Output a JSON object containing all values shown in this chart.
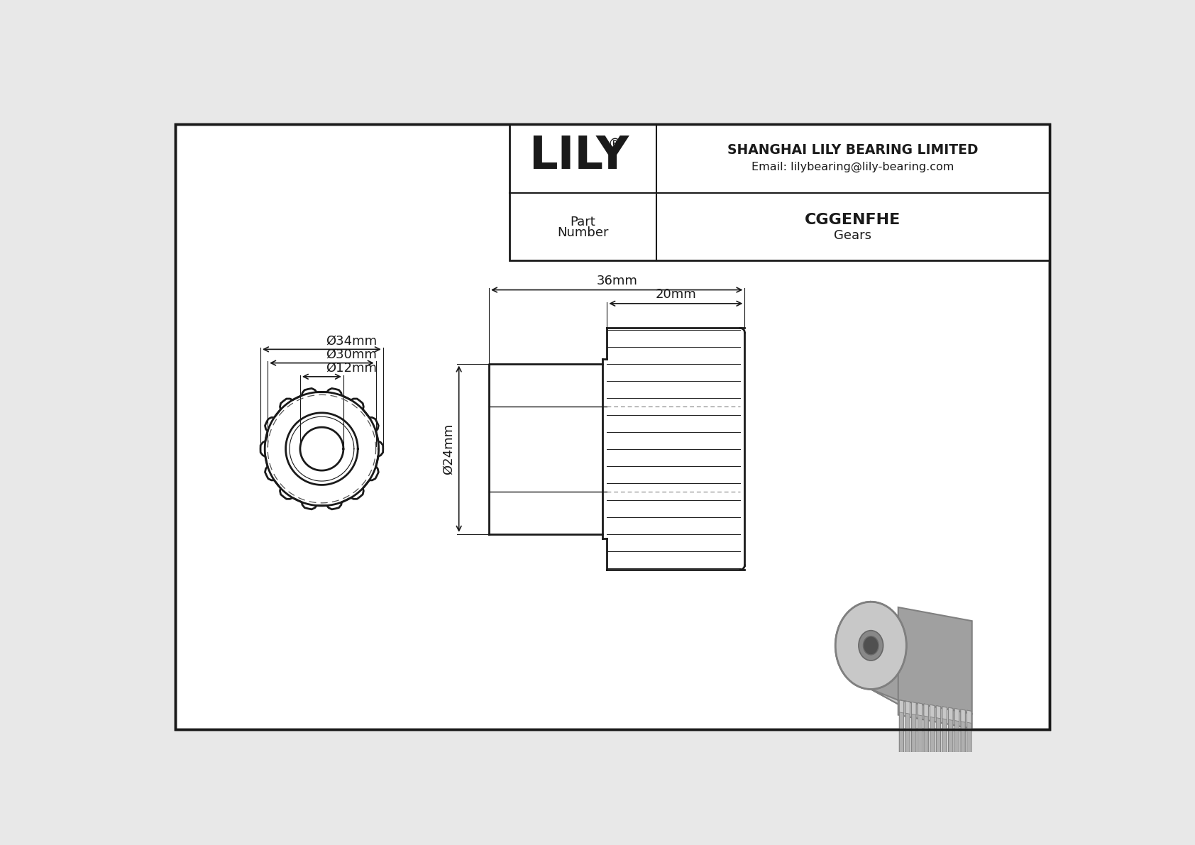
{
  "bg_color": "#e8e8e8",
  "drawing_bg": "#ffffff",
  "line_color": "#1a1a1a",
  "part_number": "CGGENFHE",
  "category": "Gears",
  "company": "SHANGHAI LILY BEARING LIMITED",
  "email": "Email: lilybearing@lily-bearing.com",
  "part_label_line1": "Part",
  "part_label_line2": "Number",
  "dim_od": "Ø34mm",
  "dim_pd": "Ø30mm",
  "dim_bore": "Ø12mm",
  "dim_length": "36mm",
  "dim_hub_length": "20mm",
  "dim_hub_dia": "Ø24mm",
  "num_teeth": 14,
  "gear3d_color": "#a0a0a0",
  "gear3d_dark": "#808080",
  "gear3d_light": "#c8c8c8",
  "gear3d_darker": "#686868"
}
